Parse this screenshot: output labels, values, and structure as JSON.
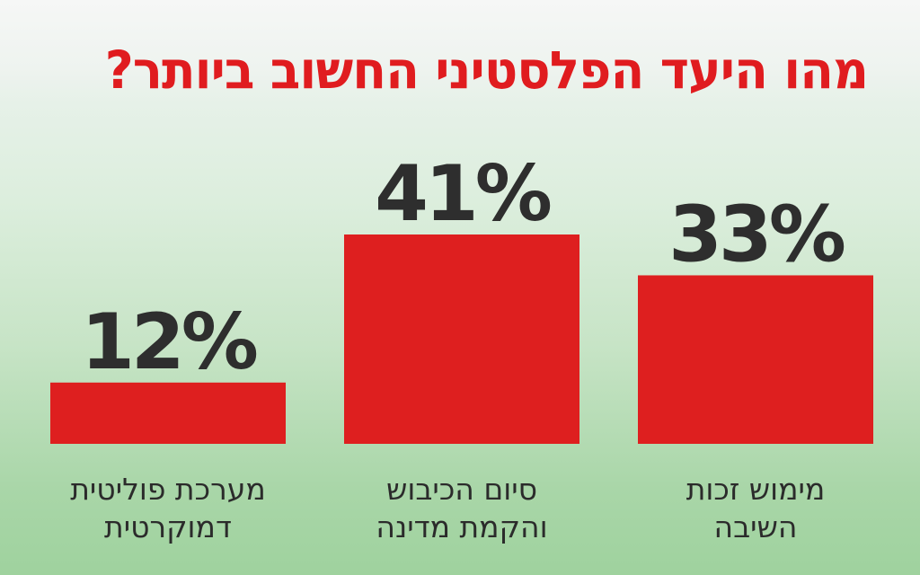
{
  "chart_data": {
    "type": "bar",
    "title": "מהו היעד הפלסטיני החשוב ביותר?",
    "categories": [
      [
        "מערכת פוליטית",
        "דמוקרטית"
      ],
      [
        "סיום הכיבוש",
        "והקמת מדינה"
      ],
      [
        "מימוש זכות",
        "השיבה"
      ]
    ],
    "values": [
      12,
      41,
      33
    ],
    "value_labels": [
      "12%",
      "41%",
      "33%"
    ],
    "ylim": [
      0,
      41
    ],
    "grid": false,
    "legend": "none",
    "colors": {
      "bar": "#de1f1f",
      "title": "#e01c1f",
      "text": "#2e2e2e"
    }
  }
}
